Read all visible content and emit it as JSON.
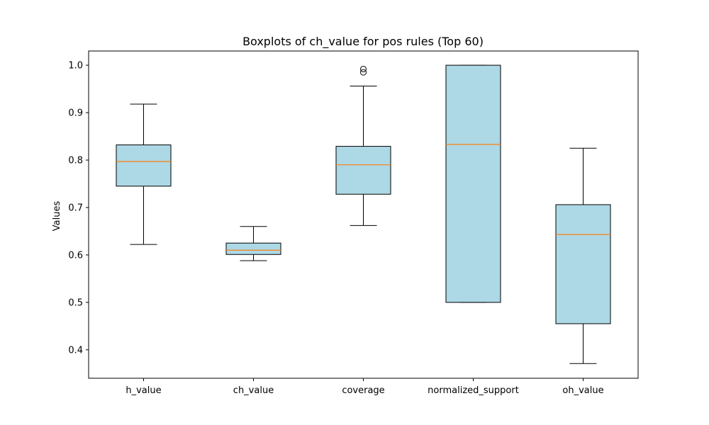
{
  "chart_data": {
    "type": "box",
    "title": "Boxplots of ch_value for pos rules (Top 60)",
    "xlabel": "",
    "ylabel": "Values",
    "categories": [
      "h_value",
      "ch_value",
      "coverage",
      "normalized_support",
      "oh_value"
    ],
    "ylim": [
      0.34,
      1.03
    ],
    "yticks": [
      0.4,
      0.5,
      0.6,
      0.7,
      0.8,
      0.9,
      1.0
    ],
    "ytick_labels": [
      "0.4",
      "0.5",
      "0.6",
      "0.7",
      "0.8",
      "0.9",
      "1.0"
    ],
    "box_color": "#add8e6",
    "median_color": "#ff7f0e",
    "grid": false,
    "boxes": [
      {
        "name": "h_value",
        "whisker_low": 0.622,
        "q1": 0.745,
        "median": 0.797,
        "q3": 0.832,
        "whisker_high": 0.918,
        "outliers": []
      },
      {
        "name": "ch_value",
        "whisker_low": 0.588,
        "q1": 0.601,
        "median": 0.61,
        "q3": 0.625,
        "whisker_high": 0.66,
        "outliers": []
      },
      {
        "name": "coverage",
        "whisker_low": 0.662,
        "q1": 0.728,
        "median": 0.79,
        "q3": 0.829,
        "whisker_high": 0.956,
        "outliers": [
          0.985,
          0.992
        ]
      },
      {
        "name": "normalized_support",
        "whisker_low": 0.5,
        "q1": 0.5,
        "median": 0.833,
        "q3": 1.0,
        "whisker_high": 1.0,
        "outliers": []
      },
      {
        "name": "oh_value",
        "whisker_low": 0.371,
        "q1": 0.455,
        "median": 0.643,
        "q3": 0.706,
        "whisker_high": 0.825,
        "outliers": []
      }
    ]
  }
}
